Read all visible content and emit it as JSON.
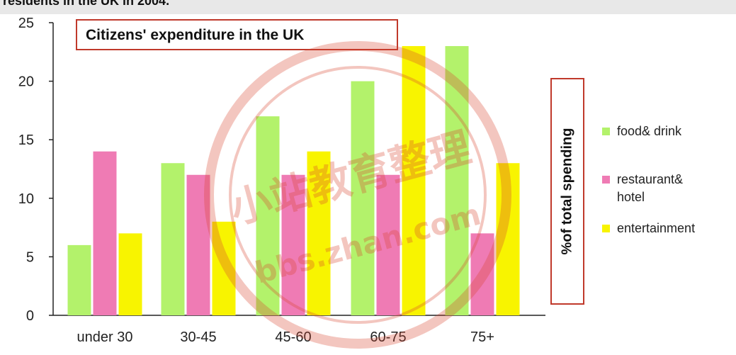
{
  "page_header": "residents in the UK in 2004.",
  "watermark_text": "小站教育整理 bbs.zhan.com",
  "colors": {
    "food_drink": "#b3f26b",
    "restaurant_hotel": "#ef7bb4",
    "entertainment": "#f8f400",
    "frame": "#c0392b",
    "axis": "#222222",
    "watermark": "#d9452f"
  },
  "chart_data": {
    "type": "bar",
    "title": "Citizens' expenditure in the UK",
    "xlabel": "",
    "ylabel": "%of total spending",
    "categories": [
      "under 30",
      "30-45",
      "45-60",
      "60-75",
      "75+"
    ],
    "series": [
      {
        "name": "food& drink",
        "values": [
          6,
          13,
          17,
          20,
          23
        ]
      },
      {
        "name": "restaurant& hotel",
        "values": [
          14,
          12,
          12,
          12,
          7
        ]
      },
      {
        "name": "entertainment",
        "values": [
          7,
          8,
          14,
          23,
          13
        ]
      }
    ],
    "ylim": [
      0,
      25
    ],
    "yticks": [
      0,
      5,
      10,
      15,
      20,
      25
    ],
    "grid": false,
    "legend_position": "right"
  }
}
